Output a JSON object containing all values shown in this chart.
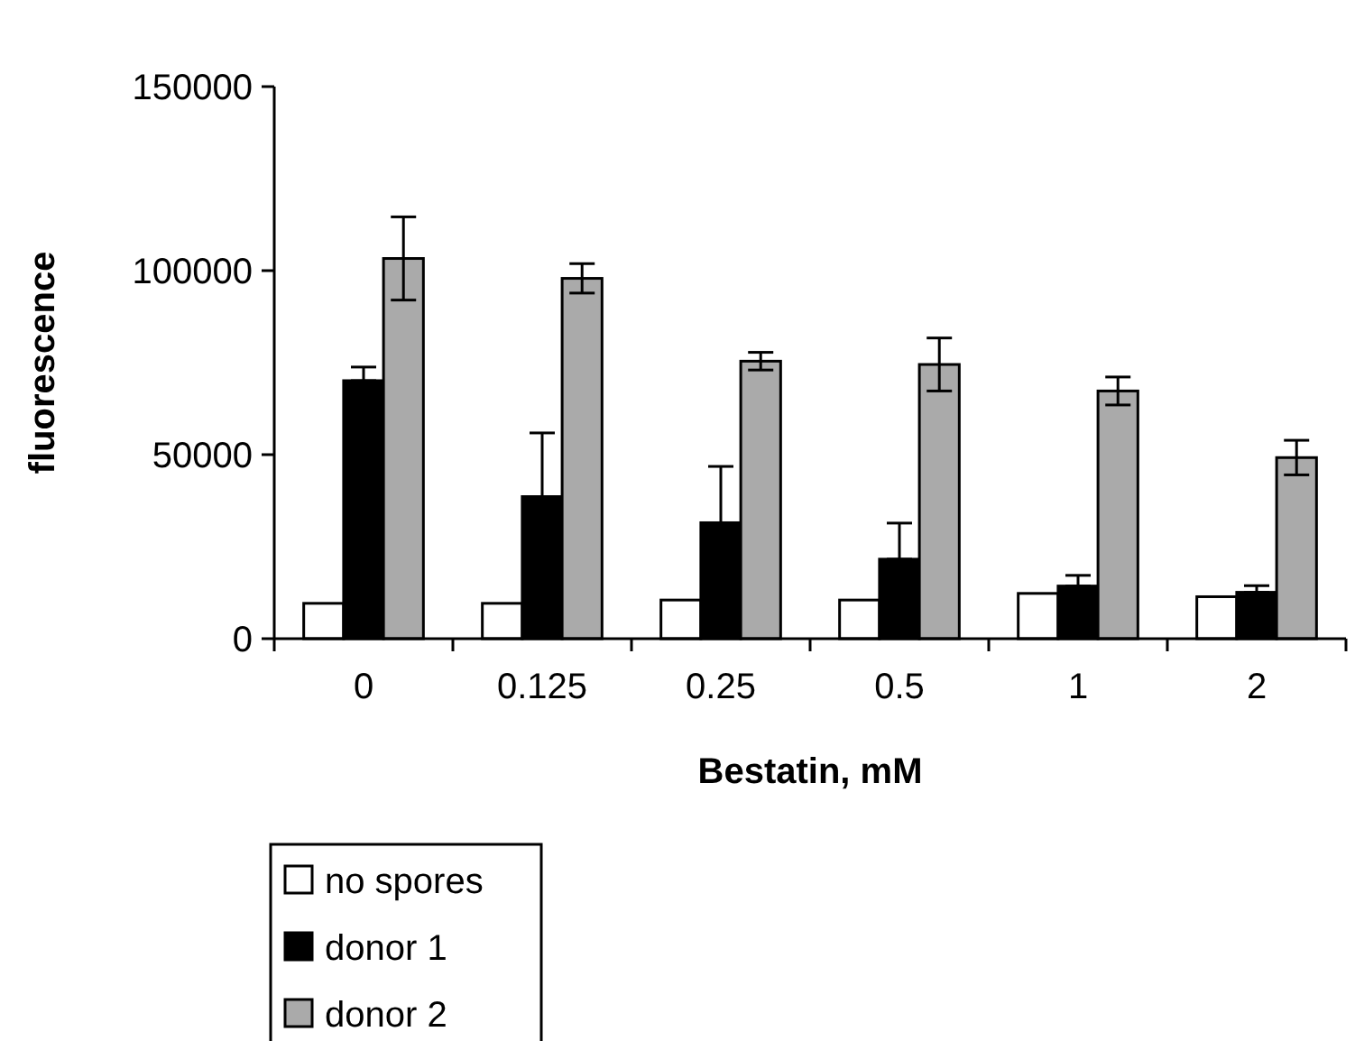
{
  "chart_data": {
    "type": "bar",
    "xlabel": "Bestatin, mM",
    "ylabel": "fluorescence",
    "categories": [
      "0",
      "0.125",
      "0.25",
      "0.5",
      "1",
      "2"
    ],
    "series": [
      {
        "name": "no spores",
        "color": "#ffffff",
        "values": [
          9600,
          9600,
          10500,
          10500,
          12300,
          11400
        ]
      },
      {
        "name": "donor 1",
        "color": "#000000",
        "values": [
          70100,
          38600,
          31500,
          21600,
          14300,
          12600
        ],
        "errors": [
          [
            70100,
            73800
          ],
          [
            38600,
            55900
          ],
          [
            31500,
            46800
          ],
          [
            21600,
            31400
          ],
          [
            14300,
            17200
          ],
          [
            12600,
            14400
          ]
        ]
      },
      {
        "name": "donor 2",
        "color": "#aaaaaa",
        "values": [
          103300,
          97900,
          75400,
          74500,
          67300,
          49200
        ],
        "errors": [
          11300,
          4000,
          2400,
          7200,
          3800,
          4700
        ]
      }
    ],
    "ylim": [
      0,
      150000
    ],
    "yticks": [
      0,
      50000,
      100000,
      150000
    ],
    "grid": false,
    "legend": "bottom left"
  }
}
